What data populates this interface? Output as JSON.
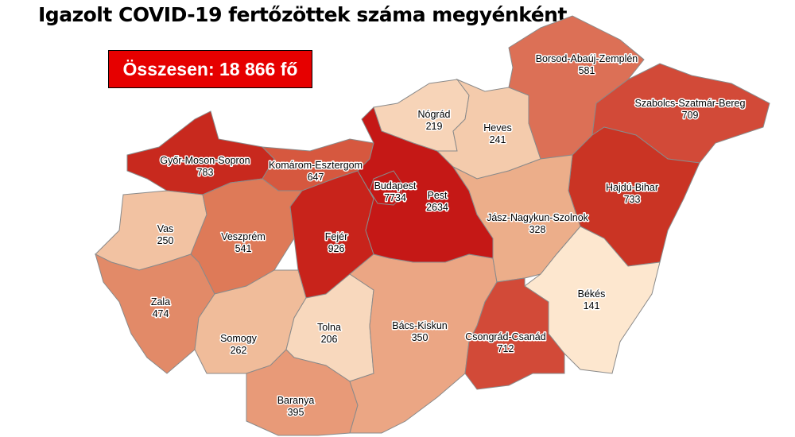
{
  "title": "Igazolt COVID-19 fertőzöttek száma megyénként",
  "total_label": "Összesen: 18 866 fő",
  "counties": [
    {
      "name": "Győr-Moson-Sopron",
      "value": "783",
      "color": "#c8291e"
    },
    {
      "name": "Komárom-Esztergom",
      "value": "647",
      "color": "#d6583f"
    },
    {
      "name": "Vas",
      "value": "250",
      "color": "#f2c2a2"
    },
    {
      "name": "Veszprém",
      "value": "541",
      "color": "#de7a58"
    },
    {
      "name": "Fejér",
      "value": "926",
      "color": "#c8231b"
    },
    {
      "name": "Zala",
      "value": "474",
      "color": "#e28a68"
    },
    {
      "name": "Somogy",
      "value": "262",
      "color": "#f0bc9a"
    },
    {
      "name": "Tolna",
      "value": "206",
      "color": "#f8d8bd"
    },
    {
      "name": "Baranya",
      "value": "395",
      "color": "#e89a78"
    },
    {
      "name": "Bács-Kiskun",
      "value": "350",
      "color": "#eba684"
    },
    {
      "name": "Pest",
      "value": "2634",
      "color": "#c51816"
    },
    {
      "name": "Budapest",
      "value": "7734",
      "color": "#c51816"
    },
    {
      "name": "Nógrád",
      "value": "219",
      "color": "#f7d4b8"
    },
    {
      "name": "Heves",
      "value": "241",
      "color": "#f4cbac"
    },
    {
      "name": "Borsod-Abaúj-Zemplén",
      "value": "581",
      "color": "#dc7056"
    },
    {
      "name": "Szabolcs-Szatmár-Bereg",
      "value": "709",
      "color": "#d24a38"
    },
    {
      "name": "Hajdú-Bihar",
      "value": "733",
      "color": "#ca3424"
    },
    {
      "name": "Jász-Nagykun-Szolnok",
      "value": "328",
      "color": "#ecae8a"
    },
    {
      "name": "Békés",
      "value": "141",
      "color": "#fde7cf"
    },
    {
      "name": "Csongrád-Csanád",
      "value": "712",
      "color": "#d24a38"
    }
  ]
}
